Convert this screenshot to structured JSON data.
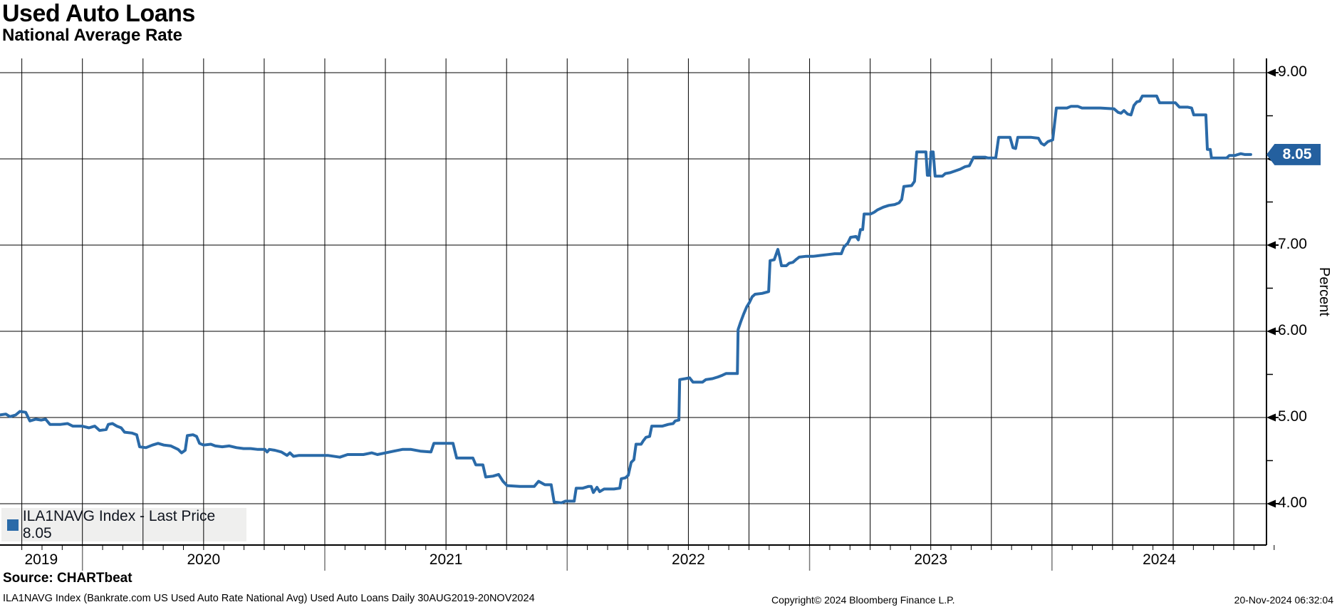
{
  "header": {
    "title": "Used Auto Loans",
    "subtitle": "National Average Rate"
  },
  "legend": {
    "swatch_color": "#2a6aa8",
    "label": "ILA1NAVG Index - Last Price 8.05"
  },
  "y_axis": {
    "title": "Percent",
    "major_ticks": [
      {
        "value": 9,
        "label": "9.00"
      },
      {
        "value": 8,
        "label": "8.00"
      },
      {
        "value": 7,
        "label": "7.00"
      },
      {
        "value": 6,
        "label": "6.00"
      },
      {
        "value": 5,
        "label": "5.00"
      },
      {
        "value": 4,
        "label": "4.00"
      }
    ],
    "minor_ticks": [
      8.5,
      7.5,
      6.5,
      5.5,
      4.5
    ]
  },
  "x_axis": {
    "year_labels": [
      "2019",
      "2020",
      "2021",
      "2022",
      "2023",
      "2024"
    ],
    "year_boundaries": [
      2020,
      2021,
      2022,
      2023,
      2024
    ],
    "domain_start": 2019.66,
    "domain_end": 2024.885
  },
  "last_price_badge": {
    "value": 8.05,
    "label": "8.05",
    "bg": "#24609f"
  },
  "footer": {
    "source": "Source: CHARTbeat",
    "description": "ILA1NAVG Index (Bankrate.com US Used Auto Rate National Avg) Used Auto Loans  Daily 30AUG2019-20NOV2024",
    "copyright": "Copyright© 2024 Bloomberg Finance L.P.",
    "timestamp": "20-Nov-2024 06:32:04"
  },
  "chart_data": {
    "type": "line",
    "title": "Used Auto Loans",
    "subtitle": "National Average Rate",
    "ylabel": "Percent",
    "x_unit": "decimal_year",
    "xlim": [
      2019.66,
      2024.885
    ],
    "ylim": [
      3.52,
      9.17
    ],
    "grid": {
      "h_values": [
        9,
        8,
        7,
        6,
        5,
        4
      ],
      "v_interval_years": 0.25,
      "v_start": 2019.75,
      "v_end": 2024.75
    },
    "month_tick_interval": 0.0833333,
    "series": [
      {
        "name": "ILA1NAVG Index",
        "color": "#2a6aa8",
        "last_price": 8.05,
        "points": [
          [
            2019.66,
            5.03
          ],
          [
            2019.684,
            5.04
          ],
          [
            2019.701,
            5.01
          ],
          [
            2019.725,
            5.03
          ],
          [
            2019.742,
            5.07
          ],
          [
            2019.766,
            5.06
          ],
          [
            2019.783,
            4.96
          ],
          [
            2019.807,
            4.98
          ],
          [
            2019.83,
            4.97
          ],
          [
            2019.848,
            4.98
          ],
          [
            2019.866,
            4.92
          ],
          [
            2019.91,
            4.92
          ],
          [
            2019.939,
            4.93
          ],
          [
            2019.96,
            4.9
          ],
          [
            2019.998,
            4.9
          ],
          [
            2020.027,
            4.88
          ],
          [
            2020.051,
            4.9
          ],
          [
            2020.071,
            4.85
          ],
          [
            2020.098,
            4.86
          ],
          [
            2020.107,
            4.92
          ],
          [
            2020.124,
            4.93
          ],
          [
            2020.142,
            4.9
          ],
          [
            2020.16,
            4.88
          ],
          [
            2020.174,
            4.83
          ],
          [
            2020.204,
            4.82
          ],
          [
            2020.224,
            4.8
          ],
          [
            2020.236,
            4.66
          ],
          [
            2020.262,
            4.65
          ],
          [
            2020.289,
            4.68
          ],
          [
            2020.312,
            4.7
          ],
          [
            2020.336,
            4.68
          ],
          [
            2020.365,
            4.67
          ],
          [
            2020.395,
            4.63
          ],
          [
            2020.409,
            4.59
          ],
          [
            2020.424,
            4.62
          ],
          [
            2020.433,
            4.79
          ],
          [
            2020.456,
            4.8
          ],
          [
            2020.471,
            4.78
          ],
          [
            2020.483,
            4.7
          ],
          [
            2020.5,
            4.68
          ],
          [
            2020.53,
            4.69
          ],
          [
            2020.548,
            4.67
          ],
          [
            2020.577,
            4.66
          ],
          [
            2020.606,
            4.67
          ],
          [
            2020.636,
            4.65
          ],
          [
            2020.665,
            4.64
          ],
          [
            2020.694,
            4.64
          ],
          [
            2020.724,
            4.63
          ],
          [
            2020.753,
            4.63
          ],
          [
            2020.762,
            4.6
          ],
          [
            2020.771,
            4.63
          ],
          [
            2020.794,
            4.62
          ],
          [
            2020.821,
            4.6
          ],
          [
            2020.844,
            4.56
          ],
          [
            2020.856,
            4.59
          ],
          [
            2020.871,
            4.55
          ],
          [
            2020.894,
            4.56
          ],
          [
            2020.953,
            4.56
          ],
          [
            2021.012,
            4.56
          ],
          [
            2021.062,
            4.54
          ],
          [
            2021.094,
            4.57
          ],
          [
            2021.159,
            4.57
          ],
          [
            2021.194,
            4.59
          ],
          [
            2021.217,
            4.57
          ],
          [
            2021.285,
            4.61
          ],
          [
            2021.32,
            4.63
          ],
          [
            2021.356,
            4.63
          ],
          [
            2021.394,
            4.61
          ],
          [
            2021.438,
            4.6
          ],
          [
            2021.45,
            4.7
          ],
          [
            2021.529,
            4.7
          ],
          [
            2021.544,
            4.53
          ],
          [
            2021.611,
            4.53
          ],
          [
            2021.623,
            4.45
          ],
          [
            2021.652,
            4.45
          ],
          [
            2021.664,
            4.31
          ],
          [
            2021.694,
            4.32
          ],
          [
            2021.717,
            4.34
          ],
          [
            2021.735,
            4.26
          ],
          [
            2021.752,
            4.21
          ],
          [
            2021.805,
            4.2
          ],
          [
            2021.864,
            4.2
          ],
          [
            2021.882,
            4.26
          ],
          [
            2021.908,
            4.22
          ],
          [
            2021.934,
            4.22
          ],
          [
            2021.946,
            4.02
          ],
          [
            2021.976,
            4.01
          ],
          [
            2021.993,
            4.03
          ],
          [
            2022.029,
            4.03
          ],
          [
            2022.037,
            4.18
          ],
          [
            2022.064,
            4.18
          ],
          [
            2022.087,
            4.2
          ],
          [
            2022.099,
            4.2
          ],
          [
            2022.108,
            4.13
          ],
          [
            2022.123,
            4.19
          ],
          [
            2022.134,
            4.14
          ],
          [
            2022.152,
            4.17
          ],
          [
            2022.193,
            4.17
          ],
          [
            2022.217,
            4.18
          ],
          [
            2022.223,
            4.29
          ],
          [
            2022.24,
            4.3
          ],
          [
            2022.252,
            4.33
          ],
          [
            2022.264,
            4.48
          ],
          [
            2022.275,
            4.51
          ],
          [
            2022.284,
            4.69
          ],
          [
            2022.305,
            4.69
          ],
          [
            2022.314,
            4.73
          ],
          [
            2022.325,
            4.77
          ],
          [
            2022.34,
            4.78
          ],
          [
            2022.349,
            4.9
          ],
          [
            2022.393,
            4.9
          ],
          [
            2022.417,
            4.92
          ],
          [
            2022.437,
            4.93
          ],
          [
            2022.446,
            4.96
          ],
          [
            2022.461,
            4.97
          ],
          [
            2022.464,
            5.44
          ],
          [
            2022.487,
            5.45
          ],
          [
            2022.505,
            5.46
          ],
          [
            2022.519,
            5.41
          ],
          [
            2022.558,
            5.41
          ],
          [
            2022.572,
            5.44
          ],
          [
            2022.599,
            5.45
          ],
          [
            2022.622,
            5.47
          ],
          [
            2022.64,
            5.49
          ],
          [
            2022.655,
            5.51
          ],
          [
            2022.702,
            5.51
          ],
          [
            2022.705,
            6.02
          ],
          [
            2022.716,
            6.11
          ],
          [
            2022.728,
            6.2
          ],
          [
            2022.74,
            6.28
          ],
          [
            2022.751,
            6.33
          ],
          [
            2022.763,
            6.4
          ],
          [
            2022.775,
            6.43
          ],
          [
            2022.804,
            6.44
          ],
          [
            2022.831,
            6.46
          ],
          [
            2022.837,
            6.82
          ],
          [
            2022.854,
            6.83
          ],
          [
            2022.863,
            6.9
          ],
          [
            2022.869,
            6.95
          ],
          [
            2022.878,
            6.85
          ],
          [
            2022.884,
            6.76
          ],
          [
            2022.904,
            6.76
          ],
          [
            2022.916,
            6.79
          ],
          [
            2022.931,
            6.8
          ],
          [
            2022.943,
            6.83
          ],
          [
            2022.957,
            6.86
          ],
          [
            2022.987,
            6.87
          ],
          [
            2023.016,
            6.87
          ],
          [
            2023.045,
            6.88
          ],
          [
            2023.075,
            6.89
          ],
          [
            2023.104,
            6.9
          ],
          [
            2023.131,
            6.9
          ],
          [
            2023.142,
            6.98
          ],
          [
            2023.157,
            7.02
          ],
          [
            2023.169,
            7.09
          ],
          [
            2023.192,
            7.1
          ],
          [
            2023.201,
            7.06
          ],
          [
            2023.21,
            7.18
          ],
          [
            2023.219,
            7.18
          ],
          [
            2023.225,
            7.36
          ],
          [
            2023.251,
            7.36
          ],
          [
            2023.266,
            7.38
          ],
          [
            2023.281,
            7.41
          ],
          [
            2023.304,
            7.44
          ],
          [
            2023.327,
            7.46
          ],
          [
            2023.351,
            7.47
          ],
          [
            2023.369,
            7.49
          ],
          [
            2023.38,
            7.53
          ],
          [
            2023.389,
            7.68
          ],
          [
            2023.421,
            7.69
          ],
          [
            2023.433,
            7.74
          ],
          [
            2023.442,
            8.08
          ],
          [
            2023.48,
            8.08
          ],
          [
            2023.486,
            7.81
          ],
          [
            2023.495,
            7.81
          ],
          [
            2023.501,
            8.08
          ],
          [
            2023.51,
            8.08
          ],
          [
            2023.518,
            7.8
          ],
          [
            2023.548,
            7.8
          ],
          [
            2023.56,
            7.83
          ],
          [
            2023.58,
            7.84
          ],
          [
            2023.601,
            7.86
          ],
          [
            2023.621,
            7.88
          ],
          [
            2023.642,
            7.91
          ],
          [
            2023.659,
            7.92
          ],
          [
            2023.677,
            8.02
          ],
          [
            2023.724,
            8.02
          ],
          [
            2023.736,
            8.01
          ],
          [
            2023.768,
            8.01
          ],
          [
            2023.78,
            8.25
          ],
          [
            2023.827,
            8.25
          ],
          [
            2023.839,
            8.13
          ],
          [
            2023.85,
            8.12
          ],
          [
            2023.859,
            8.25
          ],
          [
            2023.915,
            8.25
          ],
          [
            2023.944,
            8.24
          ],
          [
            2023.956,
            8.18
          ],
          [
            2023.968,
            8.16
          ],
          [
            2023.983,
            8.2
          ],
          [
            2024.003,
            8.22
          ],
          [
            2024.018,
            8.59
          ],
          [
            2024.062,
            8.59
          ],
          [
            2024.079,
            8.61
          ],
          [
            2024.106,
            8.61
          ],
          [
            2024.124,
            8.59
          ],
          [
            2024.2,
            8.59
          ],
          [
            2024.256,
            8.58
          ],
          [
            2024.273,
            8.54
          ],
          [
            2024.285,
            8.53
          ],
          [
            2024.297,
            8.56
          ],
          [
            2024.312,
            8.52
          ],
          [
            2024.326,
            8.51
          ],
          [
            2024.338,
            8.62
          ],
          [
            2024.35,
            8.66
          ],
          [
            2024.362,
            8.67
          ],
          [
            2024.373,
            8.73
          ],
          [
            2024.432,
            8.73
          ],
          [
            2024.444,
            8.65
          ],
          [
            2024.509,
            8.65
          ],
          [
            2024.526,
            8.6
          ],
          [
            2024.561,
            8.6
          ],
          [
            2024.576,
            8.59
          ],
          [
            2024.585,
            8.51
          ],
          [
            2024.635,
            8.51
          ],
          [
            2024.641,
            8.11
          ],
          [
            2024.653,
            8.11
          ],
          [
            2024.658,
            8.01
          ],
          [
            2024.72,
            8.01
          ],
          [
            2024.732,
            8.04
          ],
          [
            2024.755,
            8.04
          ],
          [
            2024.767,
            8.05
          ],
          [
            2024.779,
            8.06
          ],
          [
            2024.796,
            8.05
          ],
          [
            2024.82,
            8.05
          ]
        ]
      }
    ]
  }
}
